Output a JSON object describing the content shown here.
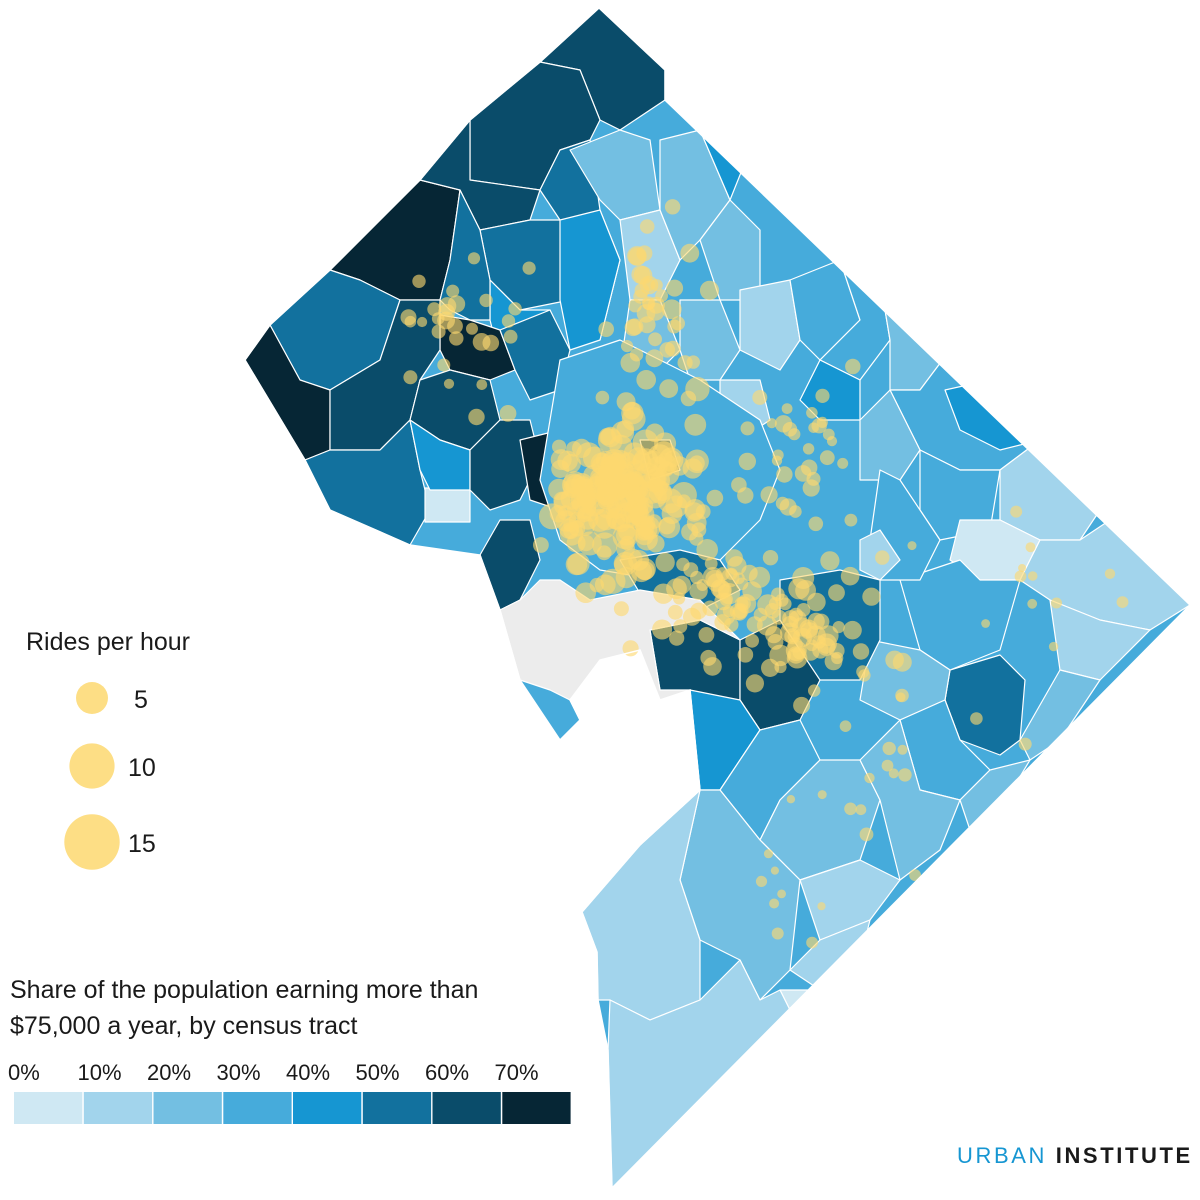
{
  "size_legend": {
    "title": "Rides per hour",
    "entries": [
      {
        "label": "5",
        "value": 5
      },
      {
        "label": "10",
        "value": 10
      },
      {
        "label": "15",
        "value": 15
      }
    ]
  },
  "color_legend": {
    "title_line1": "Share of the population earning more than",
    "title_line2": "$75,000 a year, by census tract",
    "labels": [
      "0%",
      "10%",
      "20%",
      "30%",
      "40%",
      "50%",
      "60%",
      "70%"
    ],
    "colors": [
      "#cfe8f3",
      "#a2d4ec",
      "#73bfe2",
      "#46abdb",
      "#1696d2",
      "#12719e",
      "#0a4c6a",
      "#062635"
    ]
  },
  "brand": {
    "part1": "URBAN",
    "part2": "INSTITUTE"
  },
  "marker_color": "#fdd870",
  "no_data_color": "#ececec",
  "tract_line_color": "#ffffff"
}
